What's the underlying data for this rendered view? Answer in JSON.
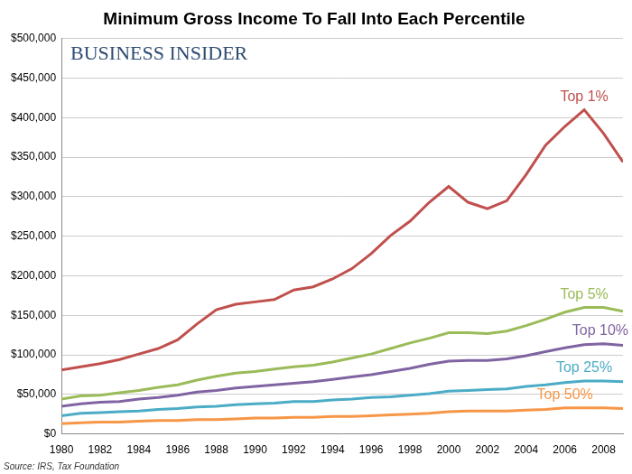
{
  "chart_data": {
    "type": "line",
    "title": "Minimum Gross Income To Fall Into Each Percentile",
    "brand": "BUSINESS INSIDER",
    "source": "Source: IRS, Tax Foundation",
    "x": [
      1980,
      1981,
      1982,
      1983,
      1984,
      1985,
      1986,
      1987,
      1988,
      1989,
      1990,
      1991,
      1992,
      1993,
      1994,
      1995,
      1996,
      1997,
      1998,
      1999,
      2000,
      2001,
      2002,
      2003,
      2004,
      2005,
      2006,
      2007,
      2008,
      2009
    ],
    "series": [
      {
        "name": "Top 1%",
        "color": "#c0504d",
        "values": [
          81000,
          85000,
          89000,
          94000,
          101000,
          108000,
          119000,
          139000,
          157000,
          164000,
          167000,
          170000,
          182000,
          186000,
          196000,
          209000,
          228000,
          251000,
          269000,
          293000,
          313000,
          293000,
          285000,
          295000,
          328000,
          365000,
          389000,
          410000,
          380000,
          344000
        ]
      },
      {
        "name": "Top 5%",
        "color": "#9bbb59",
        "values": [
          44000,
          48000,
          49000,
          52000,
          55000,
          59000,
          62000,
          68000,
          73000,
          77000,
          79000,
          82000,
          85000,
          87000,
          91000,
          96000,
          101000,
          108000,
          115000,
          121000,
          128000,
          128000,
          127000,
          130000,
          137000,
          145000,
          154000,
          160000,
          160000,
          155000
        ]
      },
      {
        "name": "Top 10%",
        "color": "#8064a2",
        "values": [
          35000,
          38000,
          40000,
          41000,
          44000,
          46000,
          49000,
          53000,
          55000,
          58000,
          60000,
          62000,
          64000,
          66000,
          69000,
          72000,
          75000,
          79000,
          83000,
          88000,
          92000,
          93000,
          93000,
          95000,
          99000,
          104000,
          109000,
          113000,
          114000,
          112000
        ]
      },
      {
        "name": "Top 25%",
        "color": "#4bacc6",
        "values": [
          23000,
          26000,
          27000,
          28000,
          29000,
          31000,
          32000,
          34000,
          35000,
          37000,
          38000,
          39000,
          41000,
          41000,
          43000,
          44000,
          46000,
          47000,
          49000,
          51000,
          54000,
          55000,
          56000,
          57000,
          60000,
          62000,
          65000,
          67000,
          67000,
          66000
        ]
      },
      {
        "name": "Top 50%",
        "color": "#f79646",
        "values": [
          13000,
          14000,
          15000,
          15000,
          16000,
          17000,
          17000,
          18000,
          18000,
          19000,
          20000,
          20000,
          21000,
          21000,
          22000,
          22000,
          23000,
          24000,
          25000,
          26000,
          28000,
          29000,
          29000,
          29000,
          30000,
          31000,
          33000,
          33000,
          33000,
          32000
        ]
      }
    ],
    "xlim": [
      1980,
      2009
    ],
    "xticks": [
      1980,
      1982,
      1984,
      1986,
      1988,
      1990,
      1992,
      1994,
      1996,
      1998,
      2000,
      2002,
      2004,
      2006,
      2008
    ],
    "ylim": [
      0,
      500000
    ],
    "yticks": [
      {
        "value": 0,
        "label": "$0"
      },
      {
        "value": 50000,
        "label": "$50,000"
      },
      {
        "value": 100000,
        "label": "$100,000"
      },
      {
        "value": 150000,
        "label": "$150,000"
      },
      {
        "value": 200000,
        "label": "$200,000"
      },
      {
        "value": 250000,
        "label": "$250,000"
      },
      {
        "value": 300000,
        "label": "$300,000"
      },
      {
        "value": 350000,
        "label": "$350,000"
      },
      {
        "value": 400000,
        "label": "$400,000"
      },
      {
        "value": 450000,
        "label": "$450,000"
      },
      {
        "value": 500000,
        "label": "$500,000"
      }
    ],
    "grid": true
  }
}
